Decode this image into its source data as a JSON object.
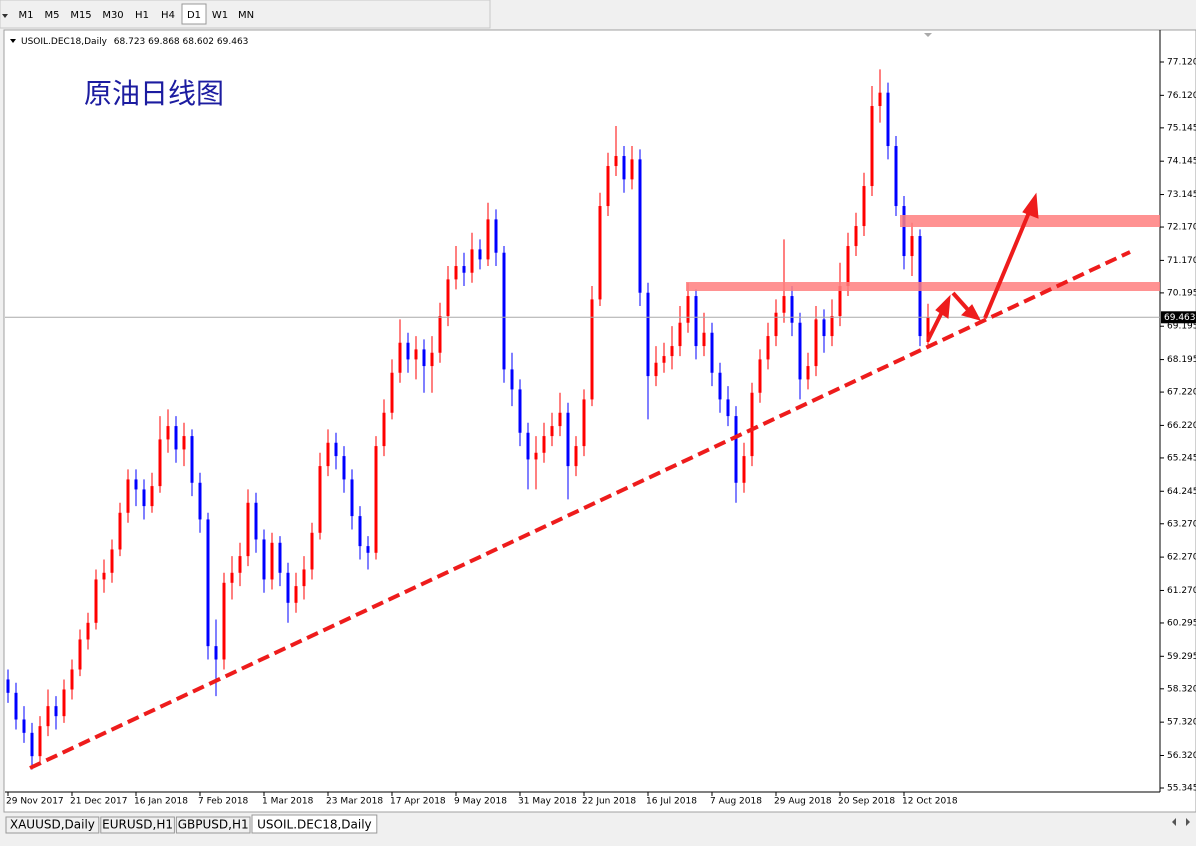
{
  "toolbar": {
    "timeframes": [
      "M1",
      "M5",
      "M15",
      "M30",
      "H1",
      "H4",
      "D1",
      "W1",
      "MN"
    ]
  },
  "tabs": [
    "XAUUSD,Daily",
    "EURUSD,H1",
    "GBPUSD,H1",
    "USOIL.DEC18,Daily"
  ],
  "chart_data": {
    "type": "candlestick",
    "title": "原油日线图",
    "categories": [
      "29 Nov 2017",
      null,
      null,
      null,
      null,
      null,
      null,
      null,
      "21 Dec 2017",
      null,
      null,
      null,
      null,
      null,
      null,
      null,
      "16 Jan 2018",
      null,
      null,
      null,
      null,
      null,
      null,
      null,
      "7 Feb 2018",
      null,
      null,
      null,
      null,
      null,
      null,
      null,
      "1 Mar 2018",
      null,
      null,
      null,
      null,
      null,
      null,
      null,
      "23 Mar 2018",
      null,
      null,
      null,
      null,
      null,
      null,
      null,
      "17 Apr 2018",
      null,
      null,
      null,
      null,
      null,
      null,
      null,
      "9 May 2018",
      null,
      null,
      null,
      null,
      null,
      null,
      null,
      "31 May 2018",
      null,
      null,
      null,
      null,
      null,
      null,
      null,
      "22 Jun 2018",
      null,
      null,
      null,
      null,
      null,
      null,
      null,
      "16 Jul 2018",
      null,
      null,
      null,
      null,
      null,
      null,
      null,
      "7 Aug 2018",
      null,
      null,
      null,
      null,
      null,
      null,
      null,
      "29 Aug 2018",
      null,
      null,
      null,
      null,
      null,
      null,
      null,
      "20 Sep 2018",
      null,
      null,
      null,
      null,
      null,
      null,
      null,
      "12 Oct 2018",
      null,
      null,
      null
    ],
    "open": [
      58.6,
      58.2,
      57.4,
      57.0,
      56.3,
      57.2,
      57.8,
      57.5,
      58.3,
      58.9,
      59.8,
      60.3,
      61.6,
      61.8,
      62.5,
      63.6,
      64.6,
      64.3,
      63.8,
      64.4,
      65.8,
      66.2,
      65.5,
      65.9,
      64.5,
      63.4,
      59.6,
      59.2,
      61.5,
      61.8,
      62.3,
      63.9,
      62.8,
      61.6,
      62.7,
      61.8,
      60.9,
      61.4,
      61.9,
      63.0,
      65.0,
      65.7,
      65.3,
      64.6,
      63.5,
      62.6,
      62.4,
      65.6,
      66.6,
      67.8,
      68.7,
      68.2,
      68.5,
      68.0,
      68.4,
      69.5,
      70.6,
      71.0,
      70.8,
      71.5,
      71.2,
      72.4,
      71.4,
      67.9,
      67.3,
      66.0,
      65.2,
      65.4,
      65.9,
      66.2,
      66.6,
      65.0,
      65.6,
      67.0,
      70.0,
      72.8,
      74.0,
      74.3,
      73.6,
      74.2,
      70.2,
      67.7,
      68.1,
      68.3,
      68.6,
      69.3,
      70.1,
      68.6,
      69.0,
      67.8,
      67.0,
      66.5,
      64.5,
      65.3,
      67.2,
      68.2,
      68.9,
      69.6,
      70.1,
      69.3,
      67.6,
      68.0,
      69.4,
      68.9,
      69.5,
      70.4,
      71.6,
      72.2,
      73.4,
      75.8,
      76.2,
      74.6,
      72.8,
      71.3,
      71.9,
      68.723
    ],
    "high": [
      58.9,
      58.5,
      57.8,
      57.3,
      57.5,
      58.3,
      58.1,
      58.6,
      59.2,
      60.1,
      60.6,
      61.9,
      62.2,
      62.8,
      63.9,
      64.9,
      64.9,
      64.6,
      64.8,
      66.5,
      66.7,
      66.5,
      66.3,
      66.1,
      64.8,
      63.6,
      60.4,
      61.8,
      62.3,
      62.7,
      64.3,
      64.2,
      63.1,
      63.0,
      62.9,
      62.1,
      61.8,
      62.3,
      63.3,
      65.4,
      66.1,
      66.0,
      65.6,
      64.9,
      63.8,
      62.9,
      65.9,
      67.0,
      68.2,
      69.4,
      69.0,
      68.9,
      68.8,
      68.9,
      69.9,
      71.0,
      71.6,
      71.4,
      72.0,
      71.8,
      72.9,
      72.7,
      71.6,
      68.4,
      67.6,
      66.3,
      65.9,
      66.3,
      66.6,
      67.2,
      66.9,
      65.9,
      67.3,
      70.4,
      73.2,
      74.4,
      75.2,
      74.6,
      74.6,
      74.5,
      70.5,
      68.6,
      68.7,
      69.2,
      69.8,
      70.5,
      70.3,
      69.6,
      69.3,
      68.1,
      67.4,
      66.8,
      65.7,
      67.5,
      68.5,
      69.3,
      70.0,
      71.8,
      70.4,
      69.6,
      68.4,
      69.8,
      69.7,
      70.0,
      71.1,
      72.0,
      72.6,
      73.8,
      76.4,
      76.9,
      76.5,
      74.9,
      73.1,
      72.3,
      72.1,
      69.868
    ],
    "low": [
      57.9,
      57.1,
      56.7,
      55.9,
      56.1,
      56.9,
      57.1,
      57.3,
      58.0,
      58.7,
      59.5,
      60.1,
      61.2,
      61.5,
      62.3,
      63.3,
      63.8,
      63.4,
      63.6,
      64.2,
      65.4,
      65.1,
      65.0,
      64.1,
      63.0,
      59.2,
      58.1,
      58.9,
      61.0,
      61.4,
      62.0,
      62.4,
      61.2,
      61.3,
      61.4,
      60.3,
      60.6,
      61.0,
      61.6,
      62.8,
      64.7,
      64.9,
      64.2,
      63.1,
      62.2,
      61.9,
      62.2,
      65.3,
      66.4,
      67.5,
      67.8,
      67.6,
      67.2,
      67.2,
      68.1,
      69.2,
      70.3,
      70.4,
      70.5,
      70.9,
      71.0,
      71.0,
      67.5,
      66.8,
      65.6,
      64.3,
      64.3,
      65.1,
      65.6,
      65.9,
      64.0,
      64.7,
      65.3,
      66.8,
      69.8,
      72.5,
      73.7,
      73.2,
      73.3,
      69.8,
      66.4,
      67.4,
      67.8,
      67.9,
      68.3,
      69.0,
      68.2,
      68.3,
      67.4,
      66.6,
      66.2,
      63.9,
      64.2,
      65.0,
      66.9,
      67.9,
      68.6,
      69.3,
      68.9,
      67.0,
      67.3,
      67.7,
      68.4,
      68.6,
      69.2,
      70.1,
      71.3,
      71.9,
      73.1,
      75.3,
      74.2,
      72.5,
      70.9,
      70.7,
      68.6,
      68.602
    ],
    "close": [
      58.2,
      57.4,
      57.0,
      56.3,
      57.2,
      57.8,
      57.5,
      58.3,
      58.9,
      59.8,
      60.3,
      61.6,
      61.8,
      62.5,
      63.6,
      64.6,
      64.3,
      63.8,
      64.4,
      65.8,
      66.2,
      65.5,
      65.9,
      64.5,
      63.4,
      59.6,
      59.2,
      61.5,
      61.8,
      62.3,
      63.9,
      62.8,
      61.6,
      62.7,
      61.8,
      60.9,
      61.4,
      61.9,
      63.0,
      65.0,
      65.7,
      65.3,
      64.6,
      63.5,
      62.6,
      62.4,
      65.6,
      66.6,
      67.8,
      68.7,
      68.2,
      68.5,
      68.0,
      68.4,
      69.5,
      70.6,
      71.0,
      70.8,
      71.5,
      71.2,
      72.4,
      71.4,
      67.9,
      67.3,
      66.0,
      65.2,
      65.4,
      65.9,
      66.2,
      66.6,
      65.0,
      65.6,
      67.0,
      70.0,
      72.8,
      74.0,
      74.3,
      73.6,
      74.2,
      70.2,
      67.7,
      68.1,
      68.3,
      68.6,
      69.3,
      70.1,
      68.6,
      69.0,
      67.8,
      67.0,
      66.5,
      64.5,
      65.3,
      67.2,
      68.2,
      68.9,
      69.6,
      70.1,
      69.3,
      67.6,
      68.0,
      69.4,
      68.9,
      69.5,
      70.4,
      71.6,
      72.2,
      73.4,
      75.8,
      76.2,
      74.6,
      72.8,
      71.3,
      71.9,
      68.9,
      69.463
    ],
    "up_color": "#ff0000",
    "down_color": "#0000ff",
    "ylim": [
      55.225,
      77.99
    ],
    "yticks": [
      55.345,
      {
        "value": 56.32,
        "label": "56.320"
      },
      {
        "value": 57.32,
        "label": "57.320"
      },
      {
        "value": 58.32,
        "label": "58.320"
      },
      59.295,
      60.295,
      {
        "value": 61.27,
        "label": "61.270"
      },
      {
        "value": 62.27,
        "label": "62.270"
      },
      {
        "value": 63.27,
        "label": "63.270"
      },
      64.245,
      65.245,
      {
        "value": 66.22,
        "label": "66.220"
      },
      {
        "value": 67.22,
        "label": "67.220"
      },
      68.195,
      69.195,
      70.195,
      {
        "value": 71.17,
        "label": "71.170"
      },
      {
        "value": 72.17,
        "label": "72.170"
      },
      73.145,
      74.145,
      75.145,
      {
        "value": 76.12,
        "label": "76.120"
      },
      {
        "value": 77.12,
        "label": "77.120"
      }
    ]
  }
}
